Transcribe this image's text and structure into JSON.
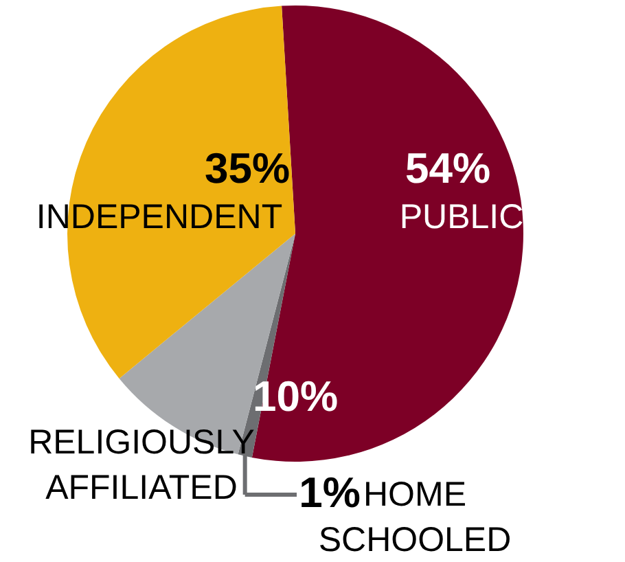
{
  "chart_data": {
    "type": "pie",
    "categories": [
      "PUBLIC",
      "HOME SCHOOLED",
      "RELIGIOUSLY AFFILIATED",
      "INDEPENDENT"
    ],
    "values": [
      54,
      1,
      10,
      35
    ],
    "value_labels": [
      "54%",
      "1%",
      "10%",
      "35%"
    ],
    "colors": [
      "#7d0026",
      "#6d6e71",
      "#a7a9ac",
      "#eeb111"
    ]
  }
}
